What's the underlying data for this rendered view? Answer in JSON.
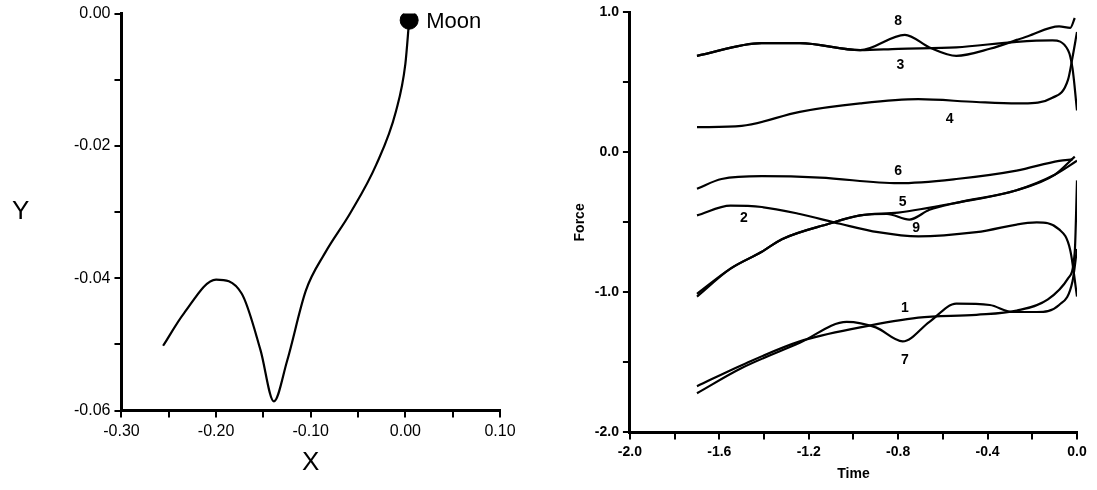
{
  "chart_data": [
    {
      "type": "line",
      "xlabel": "X",
      "ylabel": "Y",
      "xlim": [
        -0.3,
        0.1
      ],
      "ylim": [
        -0.06,
        0.0
      ],
      "xticks": [
        {
          "value": -0.3,
          "label": "-0.30"
        },
        {
          "value": -0.25,
          "label": null
        },
        {
          "value": -0.2,
          "label": "-0.20"
        },
        {
          "value": -0.15,
          "label": null
        },
        {
          "value": -0.1,
          "label": "-0.10"
        },
        {
          "value": -0.05,
          "label": null
        },
        {
          "value": 0,
          "label": "0.00"
        },
        {
          "value": 0.05,
          "label": null
        },
        {
          "value": 0.1,
          "label": "0.10"
        }
      ],
      "yticks": [
        {
          "value": -0.06,
          "label": "-0.06"
        },
        {
          "value": -0.05,
          "label": null
        },
        {
          "value": -0.04,
          "label": "-0.04"
        },
        {
          "value": -0.03,
          "label": null
        },
        {
          "value": -0.02,
          "label": "-0.02"
        },
        {
          "value": -0.01,
          "label": null
        },
        {
          "value": 0,
          "label": "0.00"
        }
      ],
      "series": [
        {
          "type": "line",
          "color": "#000000",
          "x": [
            -0.256,
            -0.234,
            -0.2,
            -0.173,
            -0.153,
            -0.139,
            -0.125,
            -0.105,
            -0.085,
            -0.058,
            -0.031,
            -0.01,
            0.0,
            0.004
          ],
          "values": [
            -0.0502,
            -0.0453,
            -0.0402,
            -0.0423,
            -0.0509,
            -0.0586,
            -0.0525,
            -0.0418,
            -0.0362,
            -0.0301,
            -0.0229,
            -0.0148,
            -0.0076,
            -0.001
          ]
        },
        {
          "type": "scatter",
          "marker": "circle",
          "color": "#000000",
          "x": [
            0.004
          ],
          "values": [
            -0.001
          ]
        }
      ],
      "annotations": [
        {
          "text": "Moon",
          "x": 0.004,
          "y": -0.001
        }
      ]
    },
    {
      "type": "line",
      "xlabel": "Time",
      "ylabel": "Force",
      "xlim": [
        -2.0,
        0.0
      ],
      "ylim": [
        -2.0,
        1.0
      ],
      "xticks": [
        {
          "value": -2,
          "label": "-2.0"
        },
        {
          "value": -1.8,
          "label": null
        },
        {
          "value": -1.6,
          "label": "-1.6"
        },
        {
          "value": -1.4,
          "label": null
        },
        {
          "value": -1.2,
          "label": "-1.2"
        },
        {
          "value": -1,
          "label": null
        },
        {
          "value": -0.8,
          "label": "-0.8"
        },
        {
          "value": -0.6,
          "label": null
        },
        {
          "value": -0.4,
          "label": "-0.4"
        },
        {
          "value": -0.2,
          "label": null
        },
        {
          "value": 0,
          "label": "0.0"
        }
      ],
      "yticks": [
        {
          "value": -2,
          "label": "-2.0"
        },
        {
          "value": -1.5,
          "label": null
        },
        {
          "value": -1,
          "label": "-1.0"
        },
        {
          "value": -0.5,
          "label": null
        },
        {
          "value": 0,
          "label": "0.0"
        },
        {
          "value": 0.5,
          "label": null
        },
        {
          "value": 1,
          "label": "1.0"
        }
      ],
      "series": [
        {
          "name": "1",
          "color": "#000000",
          "x": [
            -1.7,
            -1.5,
            -1.24,
            -0.97,
            -0.71,
            -0.45,
            -0.27,
            -0.13,
            -0.04,
            -0.01,
            0.0
          ],
          "values": [
            -1.67,
            -1.52,
            -1.35,
            -1.25,
            -1.18,
            -1.16,
            -1.13,
            -1.05,
            -0.9,
            -0.71,
            -0.2
          ]
        },
        {
          "name": "2",
          "color": "#000000",
          "x": [
            -1.7,
            -1.55,
            -1.41,
            -1.24,
            -1.06,
            -0.89,
            -0.71,
            -0.45,
            -0.18,
            -0.08,
            -0.03,
            0.0
          ],
          "values": [
            -0.45,
            -0.38,
            -0.39,
            -0.44,
            -0.51,
            -0.57,
            -0.6,
            -0.57,
            -0.5,
            -0.55,
            -0.7,
            -1.03
          ]
        },
        {
          "name": "3",
          "color": "#000000",
          "x": [
            -1.7,
            -1.41,
            -1.24,
            -0.97,
            -0.8,
            -0.54,
            -0.27,
            -0.11,
            -0.04,
            -0.02,
            0.0
          ],
          "values": [
            0.69,
            0.78,
            0.78,
            0.73,
            0.74,
            0.75,
            0.79,
            0.8,
            0.73,
            0.6,
            0.3
          ]
        },
        {
          "name": "4",
          "color": "#000000",
          "x": [
            -1.7,
            -1.5,
            -1.24,
            -0.97,
            -0.71,
            -0.45,
            -0.24,
            -0.11,
            -0.04,
            -0.02,
            0.0
          ],
          "values": [
            0.18,
            0.19,
            0.29,
            0.35,
            0.38,
            0.36,
            0.35,
            0.39,
            0.52,
            0.68,
            0.86
          ]
        },
        {
          "name": "5",
          "color": "#000000",
          "x": [
            -1.7,
            -1.55,
            -1.41,
            -1.32,
            -1.11,
            -0.97,
            -0.8,
            -0.54,
            -0.27,
            -0.1,
            -0.01
          ],
          "values": [
            -1.01,
            -0.83,
            -0.71,
            -0.62,
            -0.51,
            -0.45,
            -0.43,
            -0.36,
            -0.27,
            -0.16,
            -0.03
          ]
        },
        {
          "name": "6",
          "color": "#000000",
          "x": [
            -1.7,
            -1.59,
            -1.41,
            -1.15,
            -0.8,
            -0.54,
            -0.27,
            -0.08,
            -0.02
          ],
          "values": [
            -0.26,
            -0.19,
            -0.17,
            -0.18,
            -0.22,
            -0.19,
            -0.13,
            -0.06,
            -0.05
          ]
        },
        {
          "name": "7",
          "color": "#000000",
          "x": [
            -1.7,
            -1.5,
            -1.24,
            -1.03,
            -0.9,
            -0.78,
            -0.66,
            -0.54,
            -0.39,
            -0.29,
            -0.18,
            -0.08,
            -0.02,
            0.0
          ],
          "values": [
            -1.72,
            -1.54,
            -1.36,
            -1.21,
            -1.25,
            -1.35,
            -1.21,
            -1.08,
            -1.09,
            -1.14,
            -1.14,
            -1.09,
            -0.92,
            -0.69
          ]
        },
        {
          "name": "8",
          "color": "#000000",
          "x": [
            -1.7,
            -1.41,
            -1.24,
            -0.97,
            -0.77,
            -0.66,
            -0.54,
            -0.39,
            -0.22,
            -0.08,
            -0.03,
            -0.01
          ],
          "values": [
            0.69,
            0.78,
            0.78,
            0.73,
            0.84,
            0.75,
            0.69,
            0.74,
            0.83,
            0.9,
            0.89,
            0.96
          ]
        },
        {
          "name": "9",
          "color": "#000000",
          "x": [
            -1.7,
            -1.55,
            -1.41,
            -1.32,
            -1.11,
            -0.97,
            -0.85,
            -0.75,
            -0.66,
            -0.54,
            -0.27,
            -0.1,
            0.0
          ],
          "values": [
            -1.03,
            -0.83,
            -0.71,
            -0.62,
            -0.51,
            -0.45,
            -0.44,
            -0.48,
            -0.41,
            -0.36,
            -0.27,
            -0.16,
            -0.06
          ]
        }
      ]
    }
  ]
}
